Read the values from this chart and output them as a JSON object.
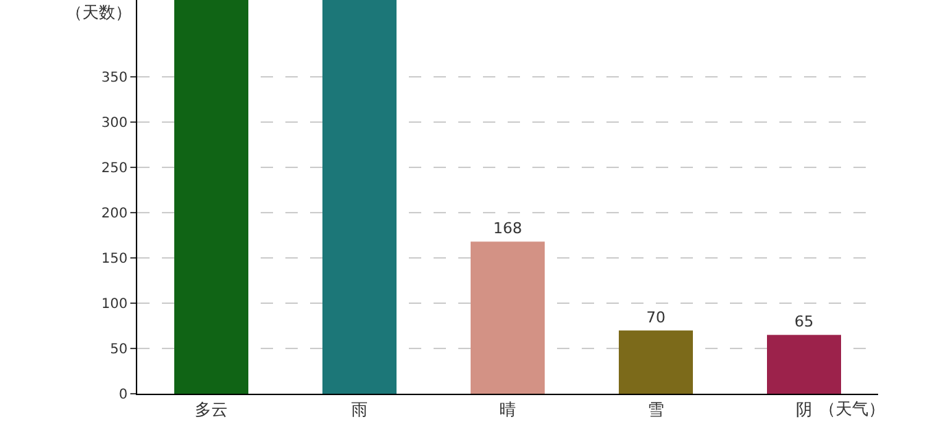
{
  "chart_data": {
    "type": "bar",
    "xlabel": "（天气）",
    "ylabel": "（天数）",
    "categories": [
      "多云",
      "雨",
      "晴",
      "雪",
      "阴"
    ],
    "values": [
      435,
      435,
      168,
      70,
      65
    ],
    "colors": [
      "#106415",
      "#1c7778",
      "#d39285",
      "#7c6a1a",
      "#9c224b"
    ],
    "value_labels": [
      null,
      null,
      "168",
      "70",
      "65"
    ],
    "ylim": [
      0,
      435
    ],
    "yticks": [
      0,
      50,
      100,
      150,
      200,
      250,
      300,
      350
    ],
    "grid": "y"
  }
}
